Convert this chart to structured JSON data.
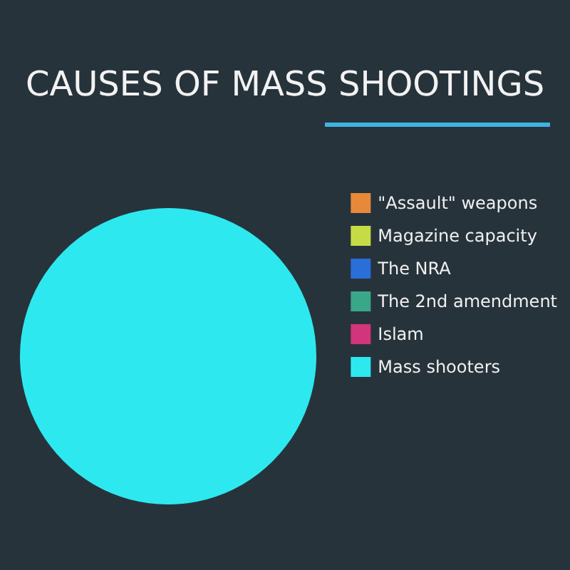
{
  "chart_data": {
    "type": "pie",
    "title": "CAUSES OF MASS SHOOTINGS",
    "categories": [
      "\"Assault\" weapons",
      "Magazine capacity",
      "The NRA",
      "The 2nd amendment",
      "Islam",
      "Mass shooters"
    ],
    "values": [
      0,
      0,
      0,
      0,
      0,
      100
    ],
    "colors": [
      "#e8893a",
      "#c5dc45",
      "#2a6fd8",
      "#3aa888",
      "#d2357c",
      "#2ee8f0"
    ],
    "legend": "right"
  }
}
